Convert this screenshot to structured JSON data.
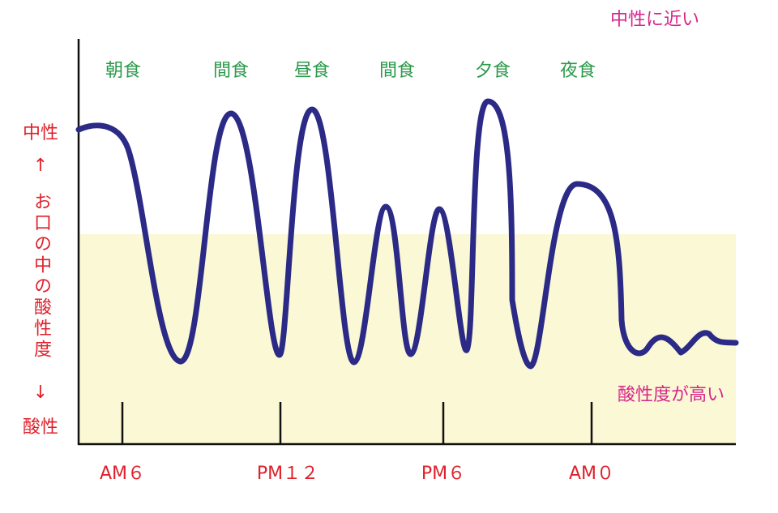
{
  "top_note": "中性に近い",
  "meals": [
    "朝食",
    "間食",
    "昼食",
    "間食",
    "夕食",
    "夜食"
  ],
  "y_axis": {
    "top": "中性",
    "up_arrow": "↑",
    "label": "お口の中の酸性度",
    "down_arrow": "↓",
    "bottom": "酸性"
  },
  "bottom_note": "酸性度が高い",
  "x_labels": [
    "AM６",
    "PM１２",
    "PM６",
    "AM０"
  ]
}
